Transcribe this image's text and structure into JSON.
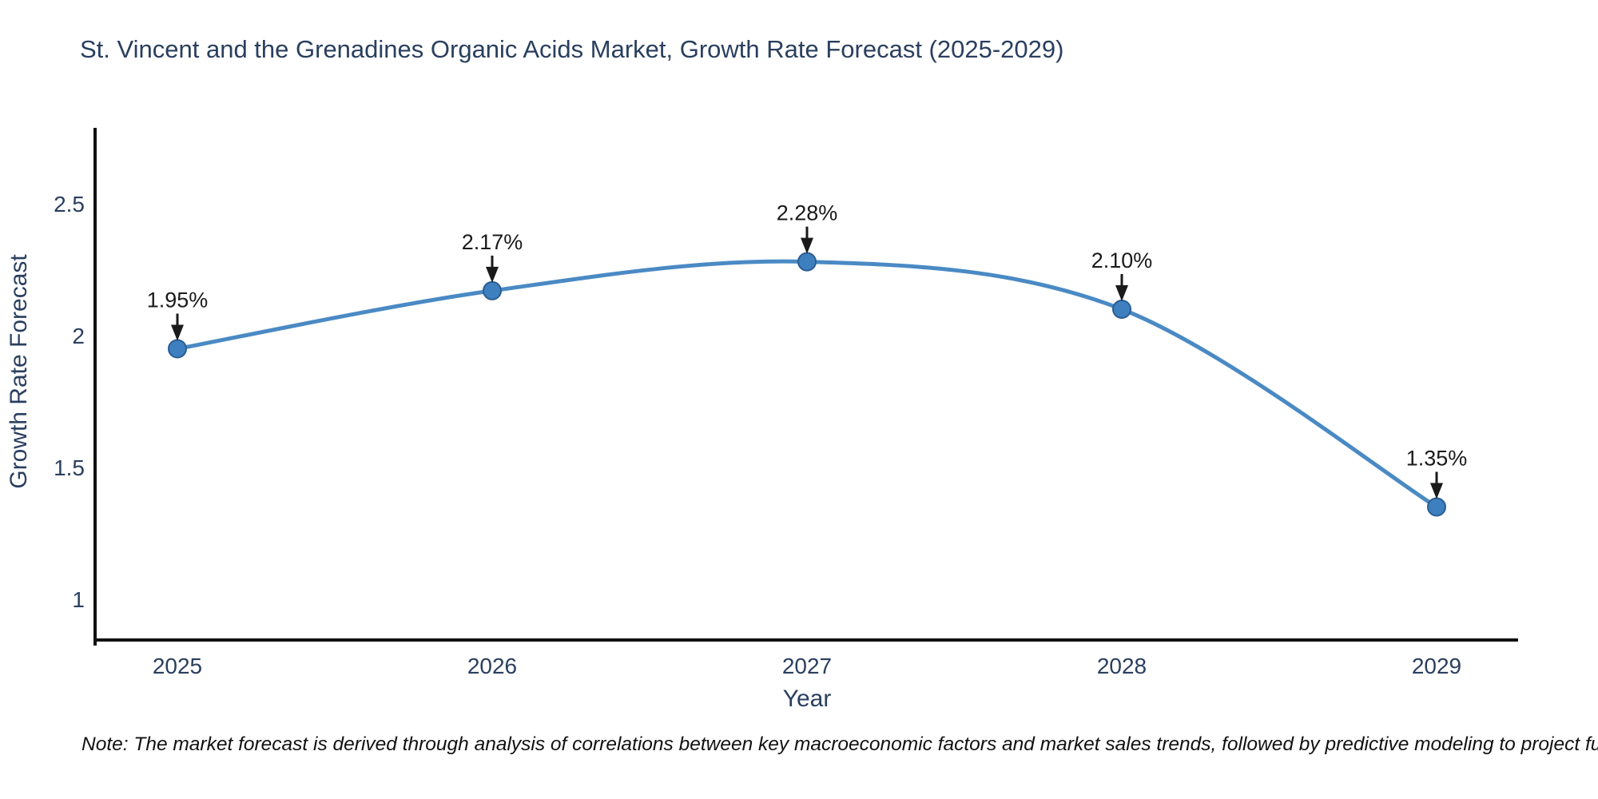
{
  "chart_data": {
    "type": "line",
    "title": "St. Vincent and the Grenadines Organic Acids Market, Growth Rate Forecast (2025-2029)",
    "xlabel": "Year",
    "ylabel": "Growth Rate Forecast",
    "categories": [
      "2025",
      "2026",
      "2027",
      "2028",
      "2029"
    ],
    "values": [
      1.95,
      2.17,
      2.28,
      2.1,
      1.35
    ],
    "point_labels": [
      "1.95%",
      "2.17%",
      "2.28%",
      "2.10%",
      "1.35%"
    ],
    "y_ticks": [
      1,
      1.5,
      2,
      2.5
    ],
    "y_tick_labels": [
      "1",
      "1.5",
      "2",
      "2.5"
    ],
    "ylim": [
      0.85,
      2.79
    ],
    "grid": false,
    "legend": null,
    "line_shape": "spline",
    "marker": "circle"
  },
  "style": {
    "background": "#ffffff",
    "text_color": "#2a3f5f",
    "axis_color": "#111111",
    "line_color": "#4a8ac4",
    "marker_color": "#3e7fbf",
    "marker_stroke": "#2b5e92",
    "annotation_color": "#1a1a1a"
  },
  "note": {
    "text": "Note: The market forecast is derived through analysis of correlations between key macroeconomic factors and market sales trends, followed by predictive modeling to project future sales"
  }
}
